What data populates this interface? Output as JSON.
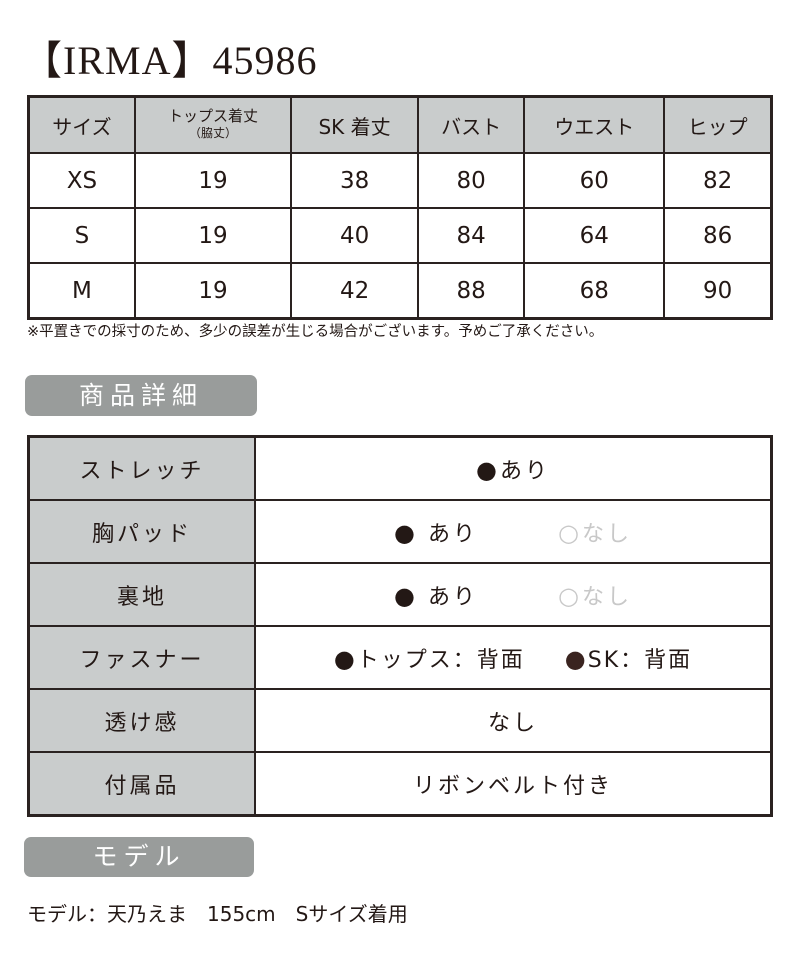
{
  "title": "【IRMA】45986",
  "size_table": {
    "headers": [
      "サイズ",
      "トップス着丈",
      "（脇丈）",
      "SK 着丈",
      "バスト",
      "ウエスト",
      "ヒップ"
    ],
    "rows": [
      [
        "XS",
        "19",
        "38",
        "80",
        "60",
        "82"
      ],
      [
        "S",
        "19",
        "40",
        "84",
        "64",
        "86"
      ],
      [
        "M",
        "19",
        "42",
        "88",
        "68",
        "90"
      ]
    ]
  },
  "note": "※平置きでの採寸のため、多少の誤差が生じる場合がございます。予めご了承ください。",
  "details_heading": "商品詳細",
  "details": {
    "stretch": {
      "label": "ストレッチ",
      "options": [
        {
          "mark": "●",
          "text": "あり"
        }
      ]
    },
    "bust_pad": {
      "label": "胸パッド",
      "options": [
        {
          "mark": "●",
          "text": "あり"
        },
        {
          "mark": "○",
          "text": "なし"
        }
      ]
    },
    "lining": {
      "label": "裏地",
      "options": [
        {
          "mark": "●",
          "text": "あり"
        },
        {
          "mark": "○",
          "text": "なし"
        }
      ]
    },
    "fastener": {
      "label": "ファスナー",
      "options": [
        {
          "mark": "●",
          "text": "トップス：背面"
        },
        {
          "mark": "●",
          "text": "SK：背面"
        }
      ]
    },
    "sheer": {
      "label": "透け感",
      "value": "なし"
    },
    "accessories": {
      "label": "付属品",
      "value": "リボンベルト付き"
    }
  },
  "model_heading": "モデル",
  "model_info": "モデル：天乃えま　155cm　Sサイズ着用",
  "colors": {
    "header_bg": "#c9cccc",
    "pill_bg": "#999c9b",
    "border": "#2a2220",
    "inactive": "#c8c8c8"
  }
}
